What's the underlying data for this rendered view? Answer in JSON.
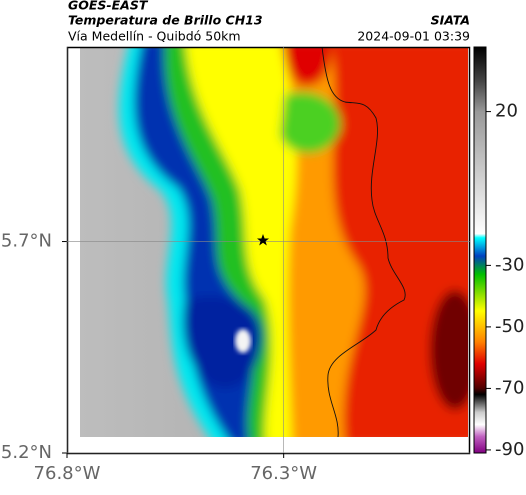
{
  "header": {
    "source": "GOES-EAST",
    "title": "Temperatura de Brillo CH13",
    "subtitle": "Vía Medellín - Quibdó 50km",
    "agency": "SIATA",
    "timestamp": "2024-09-01 03:39"
  },
  "map": {
    "lat_lim": [
      5.2,
      6.16
    ],
    "lon_lim": [
      -76.8,
      -75.87
    ],
    "lat_ticks": [
      {
        "value": 5.2,
        "label": "5.2°N"
      },
      {
        "value": 5.7,
        "label": "5.7°N"
      }
    ],
    "lon_ticks": [
      {
        "value": -76.8,
        "label": "76.8°W"
      },
      {
        "value": -76.3,
        "label": "76.3°W"
      }
    ],
    "grid": true
  },
  "colorbar": {
    "lim": [
      -91,
      41
    ],
    "ticks": [
      20,
      -30,
      -50,
      -70,
      -90
    ]
  }
}
